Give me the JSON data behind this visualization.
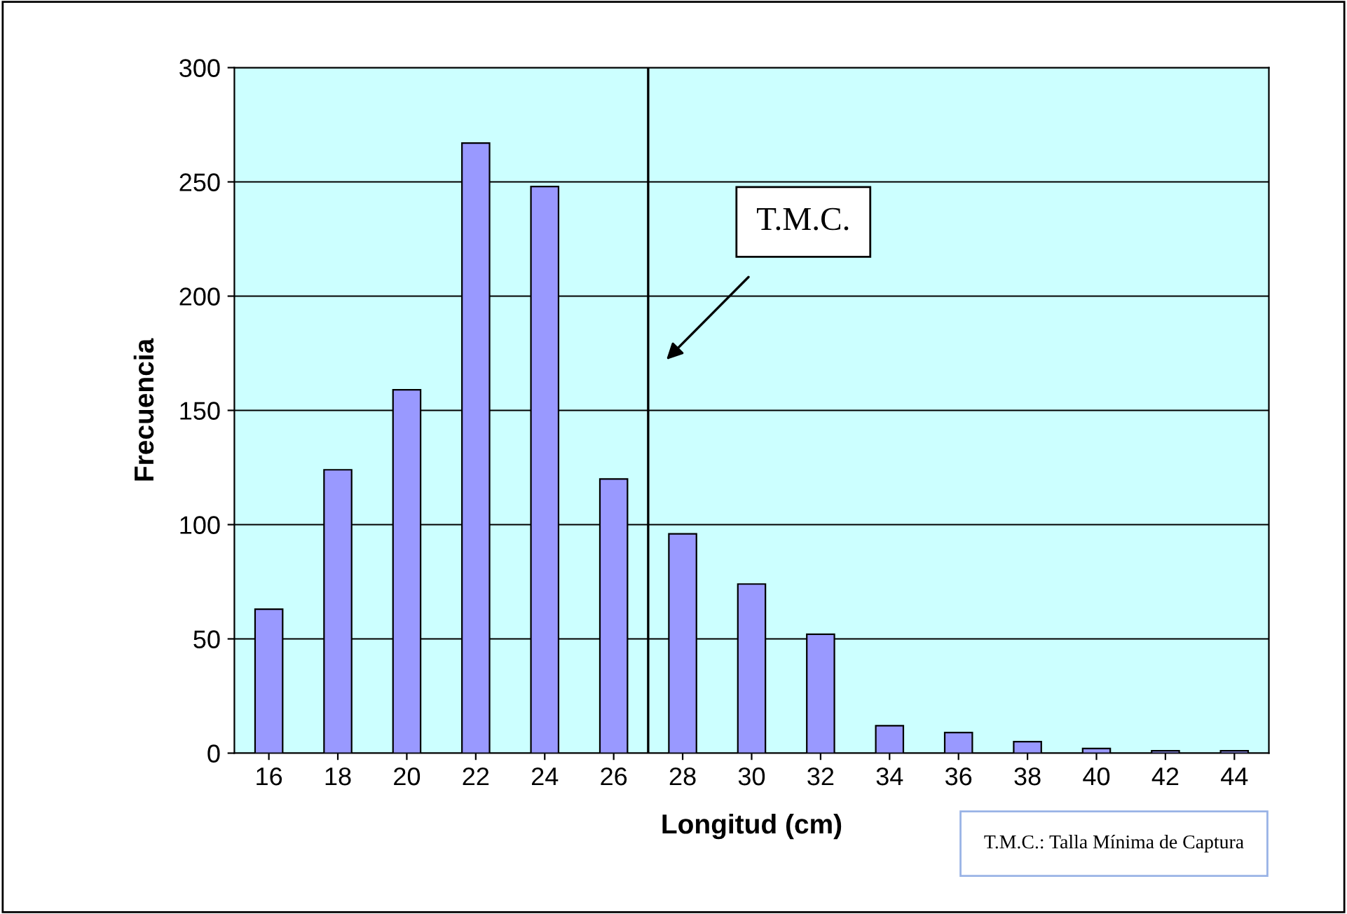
{
  "chart_data": {
    "type": "bar",
    "xlabel": "Longitud (cm)",
    "ylabel": "Frecuencia",
    "x": [
      16,
      18,
      20,
      22,
      24,
      26,
      28,
      30,
      32,
      34,
      36,
      38,
      40,
      42,
      44
    ],
    "series": [
      {
        "color": "#9999ff",
        "values": [
          63,
          124,
          159,
          267,
          248,
          120,
          96,
          74,
          52,
          12,
          9,
          5,
          2,
          1,
          1
        ]
      }
    ],
    "xlim": [
      15,
      45
    ],
    "xticks": [
      16,
      18,
      20,
      22,
      24,
      26,
      28,
      30,
      32,
      34,
      36,
      38,
      40,
      42,
      44
    ],
    "ylim": [
      0,
      300
    ],
    "yticks": [
      0,
      50,
      100,
      150,
      200,
      250,
      300
    ],
    "grid": "y",
    "legend": false,
    "ref_lines": [
      {
        "axis": "x",
        "value": 27,
        "color": "#000000",
        "line_style": "solid"
      }
    ],
    "annotations": [
      "T.M.C.",
      "T.M.C.: Talla Mínima de Captura"
    ]
  }
}
